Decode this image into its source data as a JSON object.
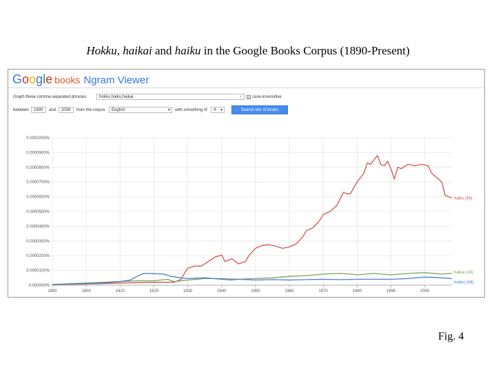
{
  "slide": {
    "title_parts": [
      "Hokku",
      ", ",
      "haikai",
      " and ",
      "haiku",
      " in the Google Books Corpus (1890-Present)"
    ],
    "figure_label": "Fig. 4"
  },
  "viewer": {
    "logo_letters": [
      "G",
      "o",
      "o",
      "g",
      "l",
      "e"
    ],
    "logo_books": "books",
    "logo_ngram": "Ngram Viewer",
    "graph_label": "Graph these comma-separated phrases:",
    "phrases_value": "hokku,haiku,haikai",
    "case_label": "case-insensitive",
    "between_label": "between",
    "start_year": "1890",
    "and_label": "and",
    "end_year": "2008",
    "corpus_label": "from the corpus",
    "corpus_value": "English",
    "smoothing_label": "with smoothing of",
    "smoothing_value": "4",
    "search_button": "Search lots of books"
  },
  "chart_data": {
    "type": "line",
    "x_ticks": [
      1890,
      1900,
      1910,
      1920,
      1930,
      1940,
      1950,
      1960,
      1970,
      1980,
      1990,
      2000
    ],
    "y_ticks": [
      "0.000000%",
      "0.0000100%",
      "0.0000200%",
      "0.0000300%",
      "0.0000400%",
      "0.0000500%",
      "0.0000600%",
      "0.0000700%",
      "0.0000800%",
      "0.0000900%",
      "0.0001000%"
    ],
    "xlim": [
      1890,
      2008
    ],
    "ylim": [
      0,
      0.0001
    ],
    "series": [
      {
        "name": "haiku (All)",
        "color": "#d8504a",
        "points": [
          [
            1890,
            5e-07
          ],
          [
            1900,
            8e-07
          ],
          [
            1910,
            1.5e-06
          ],
          [
            1920,
            2e-06
          ],
          [
            1926,
            2e-06
          ],
          [
            1928,
            4e-06
          ],
          [
            1929,
            8e-06
          ],
          [
            1930,
            1.15e-05
          ],
          [
            1932,
            1.3e-05
          ],
          [
            1934,
            1.3e-05
          ],
          [
            1936,
            1.6e-05
          ],
          [
            1938,
            1.9e-05
          ],
          [
            1940,
            2.05e-05
          ],
          [
            1941,
            1.6e-05
          ],
          [
            1943,
            1.8e-05
          ],
          [
            1945,
            1.45e-05
          ],
          [
            1947,
            1.6e-05
          ],
          [
            1948,
            2e-05
          ],
          [
            1950,
            2.5e-05
          ],
          [
            1952,
            2.7e-05
          ],
          [
            1954,
            2.75e-05
          ],
          [
            1956,
            2.65e-05
          ],
          [
            1958,
            2.5e-05
          ],
          [
            1960,
            2.6e-05
          ],
          [
            1962,
            2.8e-05
          ],
          [
            1964,
            3.3e-05
          ],
          [
            1965,
            3.7e-05
          ],
          [
            1967,
            3.9e-05
          ],
          [
            1969,
            4.4e-05
          ],
          [
            1970,
            4.8e-05
          ],
          [
            1972,
            5e-05
          ],
          [
            1974,
            5.4e-05
          ],
          [
            1976,
            6.3e-05
          ],
          [
            1977,
            6.2e-05
          ],
          [
            1978,
            6.2e-05
          ],
          [
            1980,
            7e-05
          ],
          [
            1982,
            7.6e-05
          ],
          [
            1983,
            8.3e-05
          ],
          [
            1984,
            8.2e-05
          ],
          [
            1985,
            8.5e-05
          ],
          [
            1986,
            8.8e-05
          ],
          [
            1987,
            8.2e-05
          ],
          [
            1988,
            8.1e-05
          ],
          [
            1989,
            8.4e-05
          ],
          [
            1990,
            7.9e-05
          ],
          [
            1991,
            7.2e-05
          ],
          [
            1992,
            8e-05
          ],
          [
            1993,
            7.9e-05
          ],
          [
            1995,
            8.2e-05
          ],
          [
            1997,
            8.1e-05
          ],
          [
            1999,
            8.2e-05
          ],
          [
            2001,
            8.1e-05
          ],
          [
            2002,
            7.6e-05
          ],
          [
            2003,
            7.4e-05
          ],
          [
            2005,
            7e-05
          ],
          [
            2006,
            6.1e-05
          ],
          [
            2008,
            5.9e-05
          ]
        ]
      },
      {
        "name": "haikai (All)",
        "color": "#79a356",
        "points": [
          [
            1890,
            5e-07
          ],
          [
            1900,
            1.5e-06
          ],
          [
            1910,
            2.5e-06
          ],
          [
            1915,
            3e-06
          ],
          [
            1920,
            3e-06
          ],
          [
            1924,
            4e-06
          ],
          [
            1926,
            2.5e-06
          ],
          [
            1930,
            3.5e-06
          ],
          [
            1935,
            4.5e-06
          ],
          [
            1940,
            4.5e-06
          ],
          [
            1945,
            4e-06
          ],
          [
            1950,
            4.5e-06
          ],
          [
            1955,
            5e-06
          ],
          [
            1960,
            6e-06
          ],
          [
            1965,
            6.5e-06
          ],
          [
            1970,
            7.5e-06
          ],
          [
            1975,
            8e-06
          ],
          [
            1978,
            7.5e-06
          ],
          [
            1980,
            7e-06
          ],
          [
            1985,
            8e-06
          ],
          [
            1990,
            7e-06
          ],
          [
            1995,
            8e-06
          ],
          [
            2000,
            8.5e-06
          ],
          [
            2005,
            7.5e-06
          ],
          [
            2008,
            8e-06
          ]
        ]
      },
      {
        "name": "hokku (All)",
        "color": "#4a7ad6",
        "points": [
          [
            1890,
            5e-07
          ],
          [
            1900,
            1e-06
          ],
          [
            1905,
            1.5e-06
          ],
          [
            1910,
            2.5e-06
          ],
          [
            1913,
            3.5e-06
          ],
          [
            1915,
            6e-06
          ],
          [
            1917,
            8e-06
          ],
          [
            1920,
            7.8e-06
          ],
          [
            1923,
            7.5e-06
          ],
          [
            1925,
            6e-06
          ],
          [
            1928,
            5e-06
          ],
          [
            1930,
            4.5e-06
          ],
          [
            1935,
            5e-06
          ],
          [
            1940,
            4e-06
          ],
          [
            1943,
            3.5e-06
          ],
          [
            1945,
            4e-06
          ],
          [
            1950,
            3.5e-06
          ],
          [
            1955,
            3.8e-06
          ],
          [
            1960,
            3.5e-06
          ],
          [
            1965,
            3.8e-06
          ],
          [
            1970,
            4e-06
          ],
          [
            1975,
            3.8e-06
          ],
          [
            1980,
            4e-06
          ],
          [
            1985,
            4e-06
          ],
          [
            1990,
            4e-06
          ],
          [
            1995,
            4.5e-06
          ],
          [
            2000,
            5.5e-06
          ],
          [
            2005,
            5e-06
          ],
          [
            2008,
            4.5e-06
          ]
        ]
      }
    ]
  }
}
